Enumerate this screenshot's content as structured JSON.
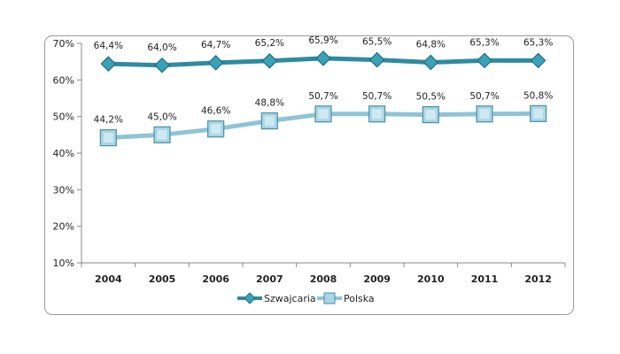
{
  "chart_data": {
    "type": "line",
    "title": "",
    "xlabel": "",
    "ylabel": "",
    "ylim": [
      10,
      70
    ],
    "yticks": [
      "10%",
      "20%",
      "30%",
      "40%",
      "50%",
      "60%",
      "70%"
    ],
    "ytick_values": [
      10,
      20,
      30,
      40,
      50,
      60,
      70
    ],
    "categories": [
      "2004",
      "2005",
      "2006",
      "2007",
      "2008",
      "2009",
      "2010",
      "2011",
      "2012"
    ],
    "series": [
      {
        "name": "Szwajcaria",
        "color": "#2e8ba0",
        "marker": "diamond",
        "values": [
          64.4,
          64.0,
          64.7,
          65.2,
          65.9,
          65.5,
          64.8,
          65.3,
          65.3
        ],
        "labels": [
          "64,4%",
          "64,0%",
          "64,7%",
          "65,2%",
          "65,9%",
          "65,5%",
          "64,8%",
          "65,3%",
          "65,3%"
        ]
      },
      {
        "name": "Polska",
        "color": "#8fc4d6",
        "marker": "square",
        "values": [
          44.2,
          45.0,
          46.6,
          48.8,
          50.7,
          50.7,
          50.5,
          50.7,
          50.8
        ],
        "labels": [
          "44,2%",
          "45,0%",
          "46,6%",
          "48,8%",
          "50,7%",
          "50,7%",
          "50,5%",
          "50,7%",
          "50,8%"
        ]
      }
    ],
    "legend_position": "bottom",
    "grid": false
  }
}
